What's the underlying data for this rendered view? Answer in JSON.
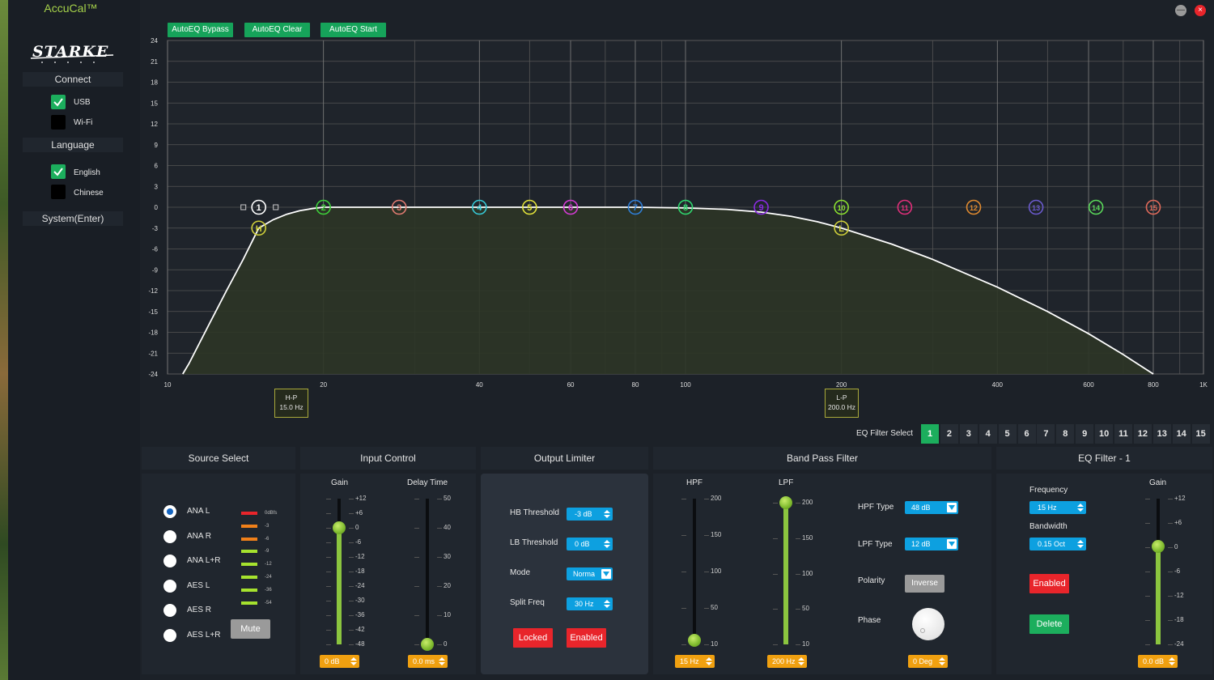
{
  "app": {
    "title": "AccuCal™",
    "logo_text": "STARKE"
  },
  "window": {
    "minimize_icon": "—",
    "close_icon": "×"
  },
  "sidebar": {
    "connect_header": "Connect",
    "usb_label": "USB",
    "usb_checked": true,
    "wifi_label": "Wi-Fi",
    "wifi_checked": false,
    "language_header": "Language",
    "english_label": "English",
    "english_checked": true,
    "chinese_label": "Chinese",
    "chinese_checked": false,
    "system_button": "System(Enter)"
  },
  "toolbar": {
    "bypass": "AutoEQ Bypass",
    "clear": "AutoEQ Clear",
    "start": "AutoEQ Start"
  },
  "chart_data": {
    "type": "line",
    "x_scale": "log",
    "xlim": [
      10,
      1000
    ],
    "ylim": [
      -24,
      24
    ],
    "x_ticks": [
      "10",
      "20",
      "40",
      "60",
      "80",
      "100",
      "200",
      "400",
      "600",
      "800",
      "1K"
    ],
    "x_tick_values": [
      10,
      20,
      40,
      60,
      80,
      100,
      200,
      400,
      600,
      800,
      1000
    ],
    "y_ticks": [
      24,
      21,
      18,
      15,
      12,
      9,
      6,
      3,
      0,
      -3,
      -6,
      -9,
      -12,
      -15,
      -18,
      -21,
      -24
    ],
    "grid": true,
    "response": {
      "x": [
        10.7,
        11,
        12,
        13,
        14,
        15,
        16,
        17,
        18,
        19,
        20,
        22,
        25,
        30,
        40,
        60,
        80,
        100,
        120,
        140,
        160,
        180,
        200,
        250,
        300,
        400,
        500,
        600,
        700,
        800
      ],
      "y": [
        -24,
        -22.5,
        -17,
        -12,
        -7.5,
        -3,
        -1.8,
        -1.0,
        -0.5,
        -0.2,
        0,
        0,
        0,
        0,
        0,
        0,
        0,
        -0.1,
        -0.3,
        -0.7,
        -1.3,
        -2.1,
        -3,
        -5.3,
        -7.5,
        -11.5,
        -15,
        -18.2,
        -21.2,
        -24
      ]
    },
    "eq_points": [
      {
        "label": "1",
        "freq": 15,
        "gain": 0,
        "color": "#ffffff"
      },
      {
        "label": "2",
        "freq": 20,
        "gain": 0,
        "color": "#3ed13a"
      },
      {
        "label": "3",
        "freq": 28,
        "gain": 0,
        "color": "#e07a70"
      },
      {
        "label": "4",
        "freq": 40,
        "gain": 0,
        "color": "#36c9d6"
      },
      {
        "label": "5",
        "freq": 50,
        "gain": 0,
        "color": "#e2e23a"
      },
      {
        "label": "6",
        "freq": 60,
        "gain": 0,
        "color": "#d43ad4"
      },
      {
        "label": "7",
        "freq": 80,
        "gain": 0,
        "color": "#2f7fd8"
      },
      {
        "label": "8",
        "freq": 100,
        "gain": 0,
        "color": "#2fd86f"
      },
      {
        "label": "9",
        "freq": 140,
        "gain": 0,
        "color": "#8a2be2"
      },
      {
        "label": "10",
        "freq": 200,
        "gain": 0,
        "color": "#8be02f"
      },
      {
        "label": "11",
        "freq": 265,
        "gain": 0,
        "color": "#e02f7a"
      },
      {
        "label": "12",
        "freq": 360,
        "gain": 0,
        "color": "#e08a2f"
      },
      {
        "label": "13",
        "freq": 475,
        "gain": 0,
        "color": "#6a5acd"
      },
      {
        "label": "14",
        "freq": 620,
        "gain": 0,
        "color": "#5ad85a"
      },
      {
        "label": "15",
        "freq": 800,
        "gain": 0,
        "color": "#e06a5a"
      }
    ],
    "hp_point": {
      "label": "H",
      "freq": 15,
      "gain": -3,
      "color": "#cfcf3a"
    },
    "lp_point": {
      "label": "L",
      "freq": 200,
      "gain": -3,
      "color": "#cfcf3a"
    }
  },
  "markers": {
    "hp": {
      "title": "H-P",
      "value": "15.0 Hz"
    },
    "lp": {
      "title": "L-P",
      "value": "200.0 Hz"
    }
  },
  "eq_select": {
    "label": "EQ Filter Select",
    "numbers": [
      "1",
      "2",
      "3",
      "4",
      "5",
      "6",
      "7",
      "8",
      "9",
      "10",
      "11",
      "12",
      "13",
      "14",
      "15"
    ],
    "selected": "1"
  },
  "source": {
    "header": "Source Select",
    "options": [
      "ANA L",
      "ANA R",
      "ANA L+R",
      "AES L",
      "AES R",
      "AES L+R"
    ],
    "selected": "ANA L",
    "meter_labels": [
      "0dBfs",
      "-3",
      "-6",
      "-9",
      "-12",
      "-24",
      "-36",
      "-54"
    ],
    "mute": "Mute"
  },
  "input_control": {
    "header": "Input Control",
    "gain_label": "Gain",
    "gain_ticks": [
      "+12",
      "+6",
      "0",
      "-6",
      "-12",
      "-18",
      "-24",
      "-30",
      "-36",
      "-42",
      "-48"
    ],
    "gain_level": 0.8,
    "gain_value": "0 dB",
    "delay_label": "Delay Time",
    "delay_ticks": [
      "50",
      "40",
      "30",
      "20",
      "10",
      "0"
    ],
    "delay_level": 0,
    "delay_value": "0.0 ms"
  },
  "output_limiter": {
    "header": "Output Limiter",
    "hb_label": "HB Threshold",
    "hb_value": "-3 dB",
    "lb_label": "LB Threshold",
    "lb_value": "0 dB",
    "mode_label": "Mode",
    "mode_value": "Norma",
    "split_label": "Split Freq",
    "split_value": "30 Hz",
    "locked": "Locked",
    "enabled": "Enabled"
  },
  "band_pass": {
    "header": "Band Pass Filter",
    "hpf_label": "HPF",
    "lpf_label": "LPF",
    "ticks": [
      "200",
      "150",
      "100",
      "50",
      "10"
    ],
    "hpf_level": 0.03,
    "lpf_level": 1,
    "hpf_value": "15 Hz",
    "lpf_value": "200 Hz",
    "hpf_type_label": "HPF Type",
    "hpf_type_value": "48 dB",
    "lpf_type_label": "LPF Type",
    "lpf_type_value": "12 dB",
    "polarity_label": "Polarity",
    "polarity_value": "Inverse",
    "phase_label": "Phase",
    "phase_value": "0 Deg"
  },
  "eq_filter": {
    "header": "EQ Filter - 1",
    "freq_label": "Frequency",
    "freq_value": "15 Hz",
    "bw_label": "Bandwidth",
    "bw_value": "0.15 Oct",
    "enabled": "Enabled",
    "delete": "Delete",
    "gain_label": "Gain",
    "gain_ticks": [
      "+12",
      "+6",
      "0",
      "-6",
      "-12",
      "-18",
      "-24"
    ],
    "gain_level": 0.67,
    "gain_value": "0.0 dB"
  }
}
